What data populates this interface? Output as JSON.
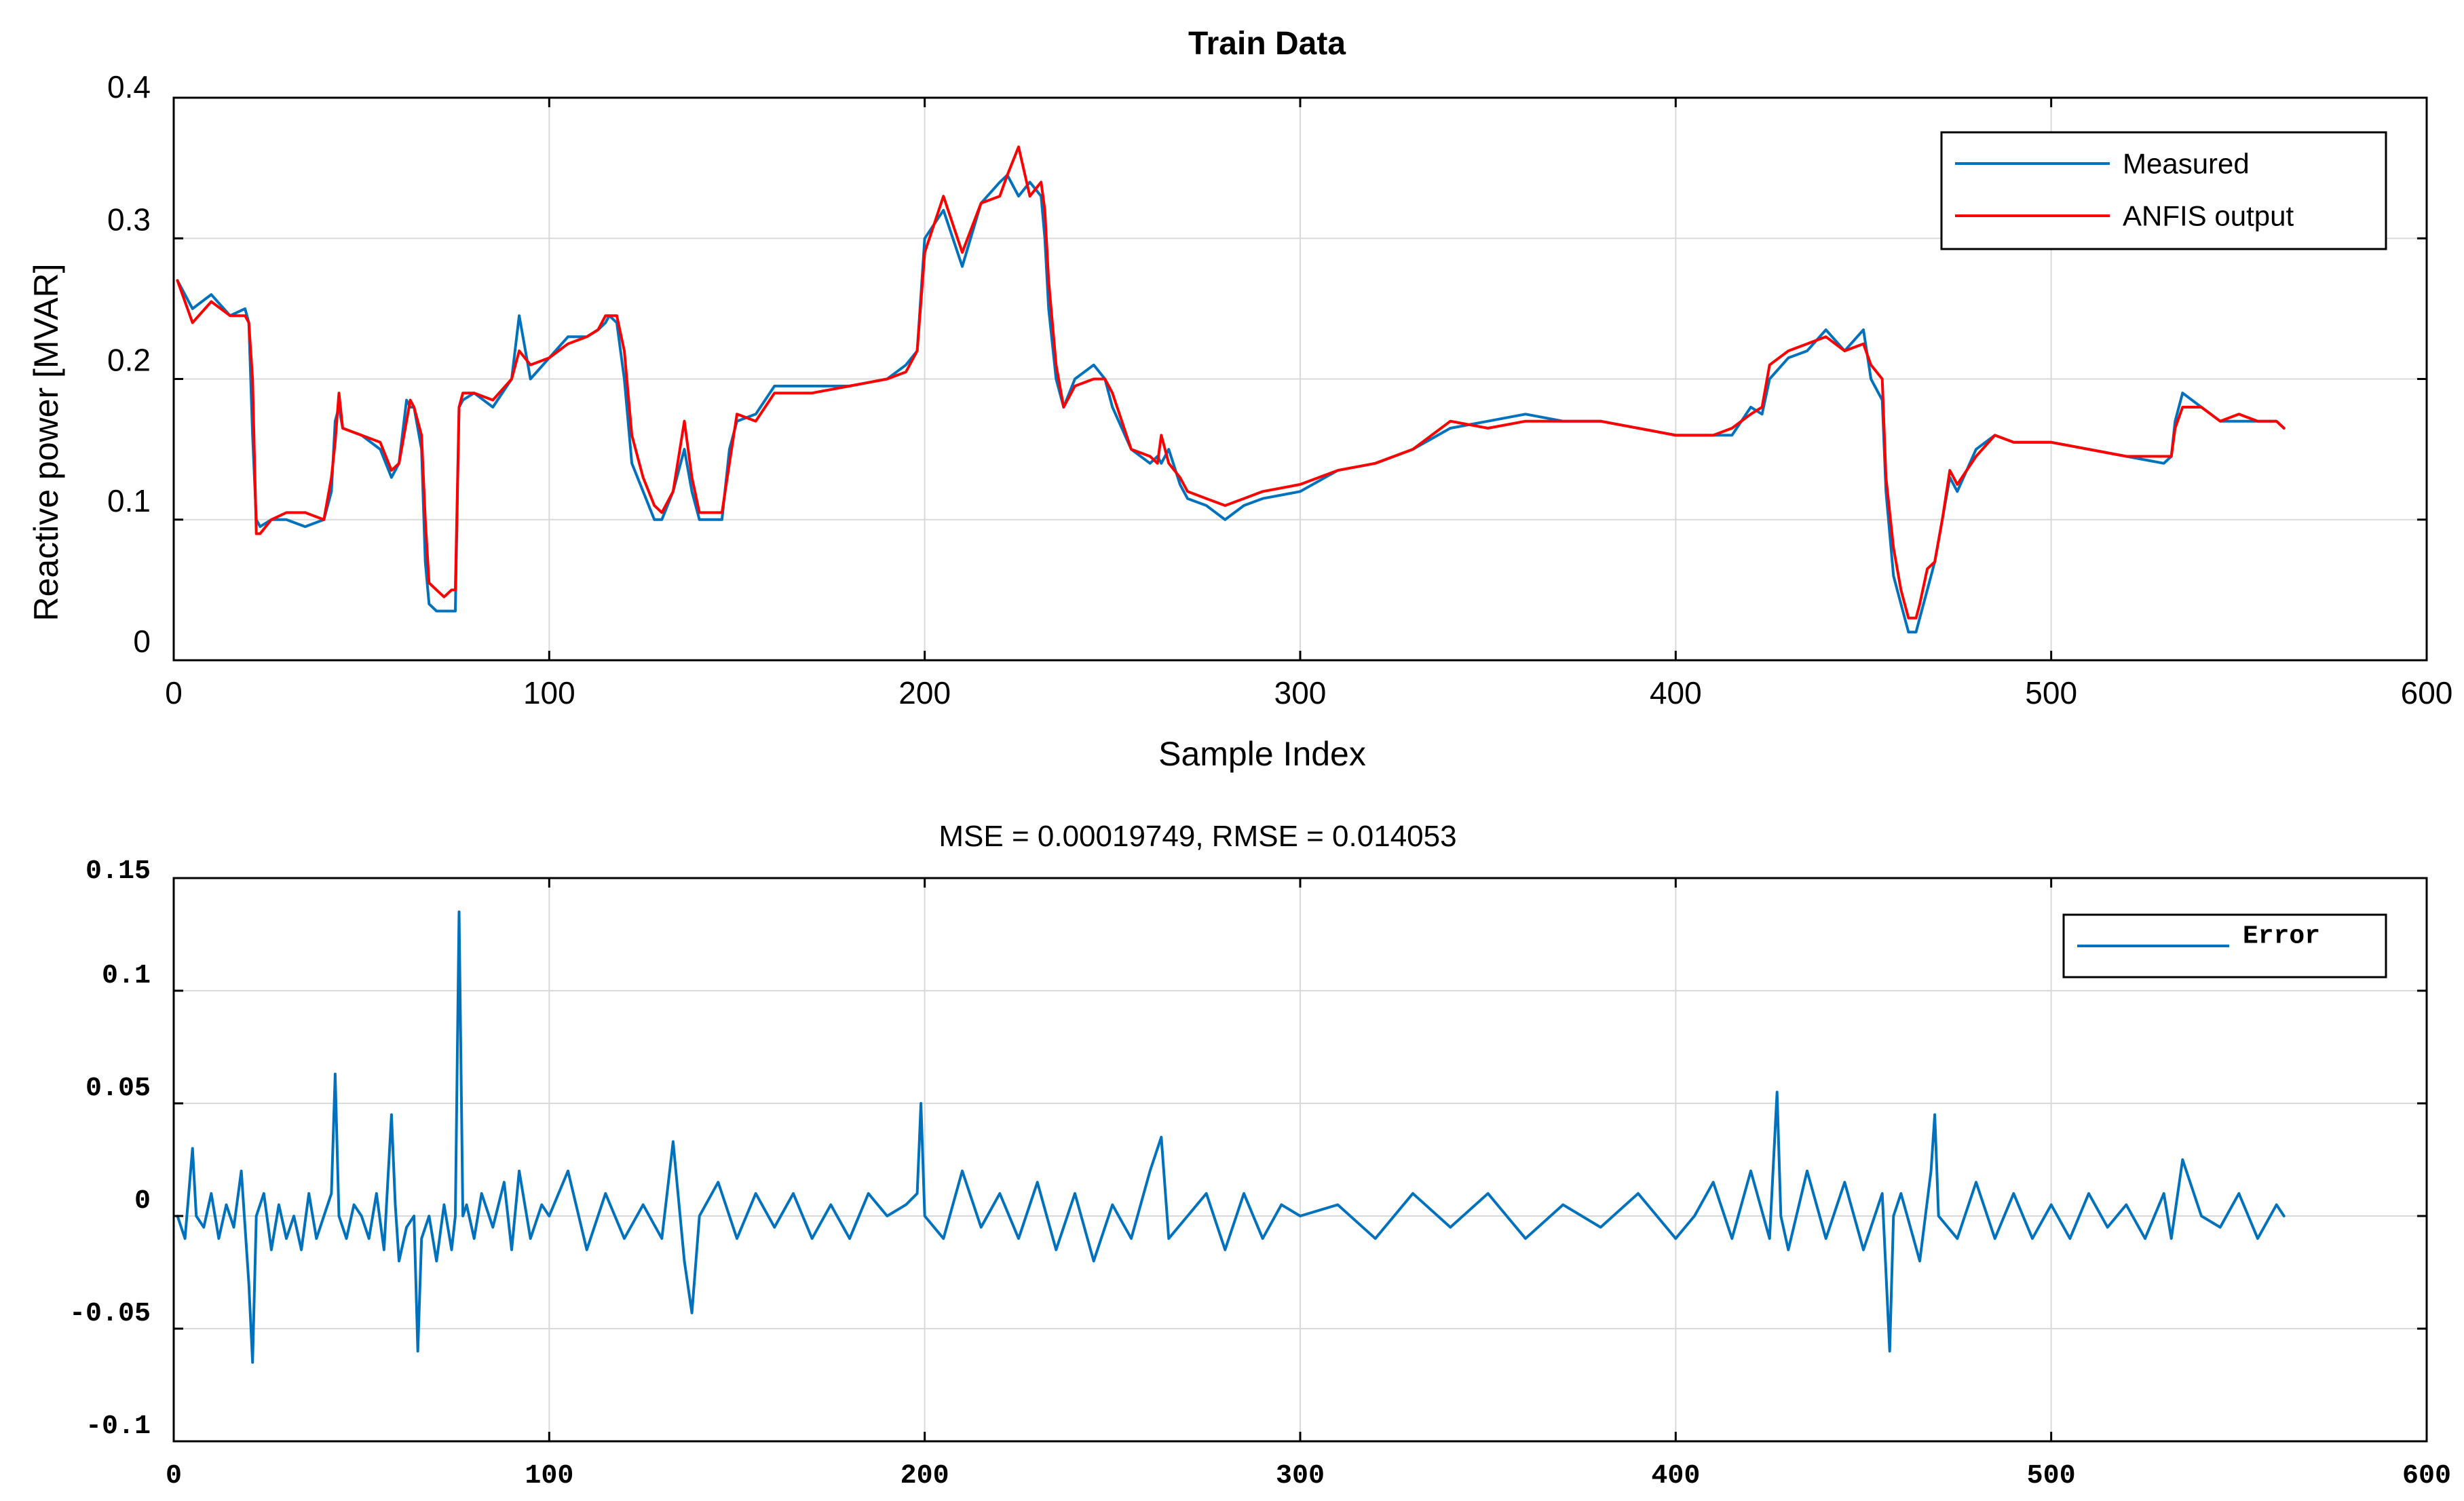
{
  "colors": {
    "measured": "#0072BD",
    "anfis": "#FF0000",
    "error": "#0072BD",
    "grid": "#d9d9d9",
    "axis": "#000000"
  },
  "chart_data": [
    {
      "type": "line",
      "title": "Train Data",
      "xlabel": "Sample Index",
      "ylabel": "Reactive power [MVAR]",
      "xlim": [
        0,
        600
      ],
      "ylim": [
        0,
        0.4
      ],
      "xticks": [
        0,
        100,
        200,
        300,
        400,
        500,
        600
      ],
      "yticks": [
        0,
        0.1,
        0.2,
        0.3,
        0.4
      ],
      "xtick_labels": [
        "0",
        "100",
        "200",
        "300",
        "400",
        "500",
        "600"
      ],
      "ytick_labels": [
        "0",
        "0.1",
        "0.2",
        "0.3",
        "0.4"
      ],
      "grid": true,
      "legend": {
        "position": "top-right",
        "entries": [
          "Measured",
          "ANFIS output"
        ]
      },
      "series": [
        {
          "name": "Measured",
          "color": "#0072BD",
          "x": [
            1,
            5,
            10,
            15,
            19,
            20,
            21,
            22,
            23,
            26,
            30,
            35,
            40,
            42,
            43,
            44,
            45,
            50,
            55,
            58,
            60,
            62,
            63,
            64,
            66,
            67,
            68,
            70,
            72,
            74,
            75,
            76,
            77,
            80,
            85,
            90,
            92,
            95,
            100,
            105,
            110,
            113,
            115,
            116,
            118,
            120,
            122,
            125,
            128,
            130,
            133,
            136,
            138,
            140,
            143,
            146,
            148,
            150,
            155,
            160,
            170,
            180,
            190,
            195,
            198,
            200,
            205,
            210,
            215,
            220,
            222,
            225,
            228,
            231,
            232,
            233,
            235,
            237,
            240,
            245,
            248,
            250,
            255,
            260,
            262,
            263,
            265,
            268,
            270,
            275,
            280,
            285,
            290,
            300,
            310,
            320,
            330,
            340,
            350,
            360,
            370,
            380,
            390,
            400,
            410,
            415,
            420,
            423,
            425,
            430,
            435,
            440,
            445,
            450,
            452,
            455,
            456,
            458,
            460,
            462,
            464,
            465,
            467,
            469,
            471,
            473,
            475,
            480,
            485,
            490,
            500,
            510,
            520,
            530,
            532,
            533,
            535,
            540,
            545,
            550,
            555,
            560,
            562
          ],
          "y": [
            0.27,
            0.25,
            0.26,
            0.245,
            0.25,
            0.24,
            0.16,
            0.1,
            0.095,
            0.1,
            0.1,
            0.095,
            0.1,
            0.12,
            0.17,
            0.18,
            0.165,
            0.16,
            0.15,
            0.13,
            0.14,
            0.185,
            0.18,
            0.18,
            0.15,
            0.07,
            0.04,
            0.035,
            0.035,
            0.035,
            0.035,
            0.18,
            0.185,
            0.19,
            0.18,
            0.2,
            0.245,
            0.2,
            0.215,
            0.23,
            0.23,
            0.235,
            0.24,
            0.245,
            0.24,
            0.2,
            0.14,
            0.12,
            0.1,
            0.1,
            0.12,
            0.15,
            0.12,
            0.1,
            0.1,
            0.1,
            0.15,
            0.17,
            0.175,
            0.195,
            0.195,
            0.195,
            0.2,
            0.21,
            0.22,
            0.3,
            0.32,
            0.28,
            0.325,
            0.34,
            0.345,
            0.33,
            0.34,
            0.33,
            0.3,
            0.25,
            0.2,
            0.18,
            0.2,
            0.21,
            0.2,
            0.18,
            0.15,
            0.14,
            0.145,
            0.14,
            0.15,
            0.125,
            0.115,
            0.11,
            0.1,
            0.11,
            0.115,
            0.12,
            0.135,
            0.14,
            0.15,
            0.165,
            0.17,
            0.175,
            0.17,
            0.17,
            0.165,
            0.16,
            0.16,
            0.16,
            0.18,
            0.175,
            0.2,
            0.215,
            0.22,
            0.235,
            0.22,
            0.235,
            0.2,
            0.185,
            0.12,
            0.06,
            0.04,
            0.02,
            0.02,
            0.03,
            0.05,
            0.07,
            0.1,
            0.13,
            0.12,
            0.15,
            0.16,
            0.155,
            0.155,
            0.15,
            0.145,
            0.14,
            0.145,
            0.17,
            0.19,
            0.18,
            0.17,
            0.17,
            0.17,
            0.17,
            0.165
          ]
        },
        {
          "name": "ANFIS output",
          "color": "#FF0000",
          "x": [
            1,
            5,
            10,
            15,
            19,
            20,
            21,
            22,
            23,
            26,
            30,
            35,
            40,
            42,
            43,
            44,
            45,
            50,
            55,
            58,
            60,
            62,
            63,
            64,
            66,
            67,
            68,
            70,
            72,
            74,
            75,
            76,
            77,
            80,
            85,
            90,
            92,
            95,
            100,
            105,
            110,
            113,
            115,
            116,
            118,
            120,
            122,
            125,
            128,
            130,
            133,
            136,
            138,
            140,
            143,
            146,
            148,
            150,
            155,
            160,
            170,
            180,
            190,
            195,
            198,
            200,
            205,
            210,
            215,
            220,
            222,
            225,
            228,
            231,
            232,
            233,
            235,
            237,
            240,
            245,
            248,
            250,
            255,
            260,
            262,
            263,
            265,
            268,
            270,
            275,
            280,
            285,
            290,
            300,
            310,
            320,
            330,
            340,
            350,
            360,
            370,
            380,
            390,
            400,
            410,
            415,
            420,
            423,
            425,
            430,
            435,
            440,
            445,
            450,
            452,
            455,
            456,
            458,
            460,
            462,
            464,
            465,
            467,
            469,
            471,
            473,
            475,
            480,
            485,
            490,
            500,
            510,
            520,
            530,
            532,
            533,
            535,
            540,
            545,
            550,
            555,
            560,
            562
          ],
          "y": [
            0.27,
            0.24,
            0.255,
            0.245,
            0.245,
            0.24,
            0.2,
            0.09,
            0.09,
            0.1,
            0.105,
            0.105,
            0.1,
            0.13,
            0.155,
            0.19,
            0.165,
            0.16,
            0.155,
            0.135,
            0.14,
            0.17,
            0.185,
            0.18,
            0.16,
            0.1,
            0.055,
            0.05,
            0.045,
            0.05,
            0.05,
            0.18,
            0.19,
            0.19,
            0.185,
            0.2,
            0.22,
            0.21,
            0.215,
            0.225,
            0.23,
            0.235,
            0.245,
            0.245,
            0.245,
            0.22,
            0.16,
            0.13,
            0.11,
            0.105,
            0.12,
            0.17,
            0.13,
            0.105,
            0.105,
            0.105,
            0.14,
            0.175,
            0.17,
            0.19,
            0.19,
            0.195,
            0.2,
            0.205,
            0.22,
            0.29,
            0.33,
            0.29,
            0.325,
            0.33,
            0.345,
            0.365,
            0.33,
            0.34,
            0.32,
            0.27,
            0.21,
            0.18,
            0.195,
            0.2,
            0.2,
            0.19,
            0.15,
            0.145,
            0.14,
            0.16,
            0.14,
            0.13,
            0.12,
            0.115,
            0.11,
            0.115,
            0.12,
            0.125,
            0.135,
            0.14,
            0.15,
            0.17,
            0.165,
            0.17,
            0.17,
            0.17,
            0.165,
            0.16,
            0.16,
            0.165,
            0.175,
            0.18,
            0.21,
            0.22,
            0.225,
            0.23,
            0.22,
            0.225,
            0.21,
            0.2,
            0.13,
            0.08,
            0.05,
            0.03,
            0.03,
            0.04,
            0.065,
            0.07,
            0.1,
            0.135,
            0.125,
            0.145,
            0.16,
            0.155,
            0.155,
            0.15,
            0.145,
            0.145,
            0.145,
            0.165,
            0.18,
            0.18,
            0.17,
            0.175,
            0.17,
            0.17,
            0.165
          ]
        }
      ]
    },
    {
      "type": "line",
      "title": "MSE = 0.00019749, RMSE = 0.014053",
      "xlabel": "",
      "ylabel": "",
      "xlim": [
        0,
        600
      ],
      "ylim": [
        -0.1,
        0.15
      ],
      "xticks": [
        0,
        100,
        200,
        300,
        400,
        500,
        600
      ],
      "yticks": [
        -0.1,
        -0.05,
        0,
        0.05,
        0.1,
        0.15
      ],
      "xtick_labels": [
        "0",
        "100",
        "200",
        "300",
        "400",
        "500",
        "600"
      ],
      "ytick_labels": [
        "-0.1",
        "-0.05",
        "0",
        "0.05",
        "0.1",
        "0.15"
      ],
      "grid": true,
      "legend": {
        "position": "top-right",
        "entries": [
          "Error"
        ]
      },
      "series": [
        {
          "name": "Error",
          "color": "#0072BD",
          "x": [
            1,
            3,
            5,
            6,
            8,
            10,
            12,
            14,
            16,
            18,
            20,
            21,
            22,
            24,
            26,
            28,
            30,
            32,
            34,
            36,
            38,
            40,
            42,
            43,
            44,
            46,
            48,
            50,
            52,
            54,
            56,
            58,
            59,
            60,
            62,
            64,
            65,
            66,
            68,
            70,
            72,
            74,
            75,
            76,
            77,
            78,
            80,
            82,
            85,
            88,
            90,
            92,
            95,
            98,
            100,
            105,
            110,
            115,
            120,
            125,
            130,
            133,
            136,
            138,
            140,
            145,
            150,
            155,
            160,
            165,
            170,
            175,
            180,
            185,
            190,
            195,
            198,
            199,
            200,
            205,
            210,
            215,
            220,
            225,
            230,
            235,
            240,
            245,
            250,
            255,
            260,
            263,
            265,
            270,
            275,
            280,
            285,
            290,
            295,
            300,
            310,
            320,
            330,
            340,
            350,
            360,
            370,
            380,
            390,
            400,
            405,
            410,
            415,
            420,
            425,
            427,
            428,
            430,
            435,
            440,
            445,
            450,
            455,
            457,
            458,
            460,
            465,
            468,
            469,
            470,
            475,
            480,
            485,
            490,
            495,
            500,
            505,
            510,
            515,
            520,
            525,
            530,
            532,
            535,
            540,
            545,
            550,
            555,
            560,
            562
          ],
          "y": [
            0.0,
            -0.01,
            0.03,
            0.0,
            -0.005,
            0.01,
            -0.01,
            0.005,
            -0.005,
            0.02,
            -0.03,
            -0.065,
            0.0,
            0.01,
            -0.015,
            0.005,
            -0.01,
            0.0,
            -0.015,
            0.01,
            -0.01,
            0.0,
            0.01,
            0.063,
            0.0,
            -0.01,
            0.005,
            0.0,
            -0.01,
            0.01,
            -0.015,
            0.045,
            0.005,
            -0.02,
            -0.005,
            0.0,
            -0.06,
            -0.01,
            0.0,
            -0.02,
            0.005,
            -0.015,
            0.0,
            0.135,
            0.0,
            0.005,
            -0.01,
            0.01,
            -0.005,
            0.015,
            -0.015,
            0.02,
            -0.01,
            0.005,
            0.0,
            0.02,
            -0.015,
            0.01,
            -0.01,
            0.005,
            -0.01,
            0.033,
            -0.02,
            -0.043,
            0.0,
            0.015,
            -0.01,
            0.01,
            -0.005,
            0.01,
            -0.01,
            0.005,
            -0.01,
            0.01,
            0.0,
            0.005,
            0.01,
            0.05,
            0.0,
            -0.01,
            0.02,
            -0.005,
            0.01,
            -0.01,
            0.015,
            -0.015,
            0.01,
            -0.02,
            0.005,
            -0.01,
            0.02,
            0.035,
            -0.01,
            0.0,
            0.01,
            -0.015,
            0.01,
            -0.01,
            0.005,
            0.0,
            0.005,
            -0.01,
            0.01,
            -0.005,
            0.01,
            -0.01,
            0.005,
            -0.005,
            0.01,
            -0.01,
            0.0,
            0.015,
            -0.01,
            0.02,
            -0.01,
            0.055,
            0.0,
            -0.015,
            0.02,
            -0.01,
            0.015,
            -0.015,
            0.01,
            -0.06,
            0.0,
            0.01,
            -0.02,
            0.02,
            0.045,
            0.0,
            -0.01,
            0.015,
            -0.01,
            0.01,
            -0.01,
            0.005,
            -0.01,
            0.01,
            -0.005,
            0.005,
            -0.01,
            0.01,
            -0.01,
            0.025,
            0.0,
            -0.005,
            0.01,
            -0.01,
            0.005,
            0.0
          ]
        }
      ]
    }
  ]
}
